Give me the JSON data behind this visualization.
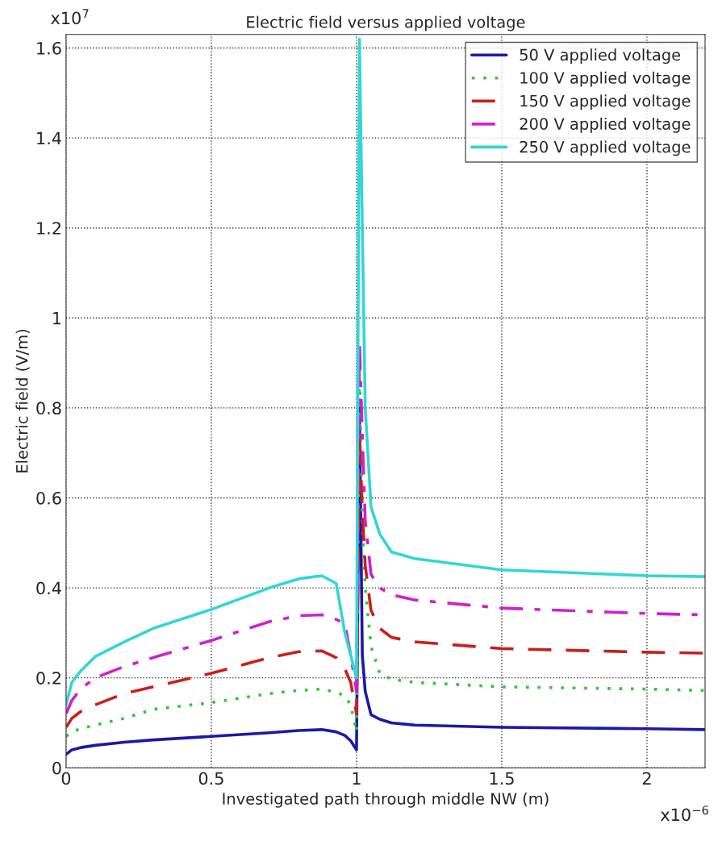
{
  "chart_data": {
    "type": "line",
    "title": "Electric field versus applied voltage",
    "xlabel": "Investigated path through middle NW (m)",
    "ylabel": "Electric field (V/m)",
    "annotations": [
      "x10$^{7}$",
      "x10$^{−6}$"
    ],
    "xlim": [
      0,
      2.2
    ],
    "xticks": [
      0,
      0.5,
      1,
      1.5,
      2
    ],
    "ylim": [
      0,
      1.63
    ],
    "yticks": [
      0,
      0.2,
      0.4,
      0.6,
      0.8,
      1,
      1.2,
      1.4,
      1.6
    ],
    "grid": true,
    "legend": "top right",
    "marker": "none",
    "x": [
      0,
      0.02,
      0.05,
      0.1,
      0.2,
      0.3,
      0.5,
      0.7,
      0.8,
      0.88,
      0.93,
      0.96,
      0.98,
      1.0,
      1.01,
      1.02,
      1.03,
      1.05,
      1.08,
      1.12,
      1.2,
      1.5,
      2.0,
      2.2
    ],
    "series": [
      {
        "name": "50 V applied voltage",
        "color": "#1a1aa8",
        "line_style": "solid",
        "values": [
          0.03,
          0.04,
          0.045,
          0.05,
          0.057,
          0.062,
          0.07,
          0.078,
          0.083,
          0.085,
          0.08,
          0.072,
          0.06,
          0.04,
          0.8,
          0.25,
          0.17,
          0.118,
          0.108,
          0.1,
          0.095,
          0.09,
          0.087,
          0.085
        ]
      },
      {
        "name": "100 V applied voltage",
        "color": "#33c833",
        "line_style": "dotted",
        "values": [
          0.07,
          0.08,
          0.087,
          0.095,
          0.11,
          0.13,
          0.145,
          0.165,
          0.172,
          0.175,
          0.168,
          0.16,
          0.14,
          0.08,
          0.9,
          0.55,
          0.4,
          0.27,
          0.21,
          0.197,
          0.19,
          0.18,
          0.175,
          0.172
        ]
      },
      {
        "name": "150 V applied voltage",
        "color": "#c8201a",
        "line_style": "dashed",
        "values": [
          0.09,
          0.11,
          0.125,
          0.14,
          0.165,
          0.18,
          0.21,
          0.245,
          0.258,
          0.26,
          0.245,
          0.22,
          0.19,
          0.12,
          0.75,
          0.57,
          0.45,
          0.35,
          0.31,
          0.29,
          0.28,
          0.265,
          0.257,
          0.255
        ]
      },
      {
        "name": "200 V applied voltage",
        "color": "#d020d0",
        "line_style": "dashdot",
        "values": [
          0.12,
          0.15,
          0.175,
          0.2,
          0.225,
          0.245,
          0.283,
          0.325,
          0.338,
          0.34,
          0.33,
          0.32,
          0.25,
          0.17,
          0.95,
          0.74,
          0.55,
          0.43,
          0.4,
          0.385,
          0.373,
          0.355,
          0.343,
          0.34
        ]
      },
      {
        "name": "250 V applied voltage",
        "color": "#33d6d6",
        "line_style": "solid",
        "values": [
          0.14,
          0.19,
          0.215,
          0.247,
          0.28,
          0.31,
          0.352,
          0.4,
          0.42,
          0.427,
          0.41,
          0.3,
          0.25,
          0.2,
          1.62,
          1.2,
          0.8,
          0.58,
          0.52,
          0.48,
          0.465,
          0.44,
          0.427,
          0.425
        ]
      }
    ]
  }
}
